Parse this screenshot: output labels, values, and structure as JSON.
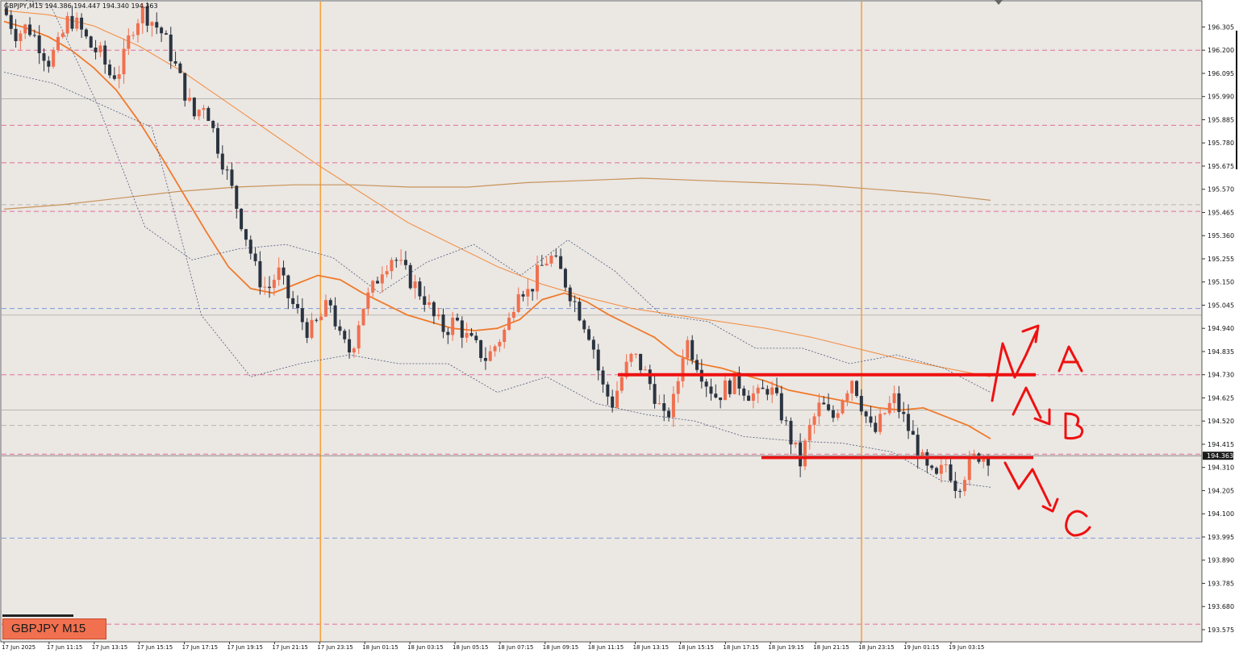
{
  "window": {
    "header": "GBPJPY,M15  194.386 194.447 194.340 194.363",
    "symbol_label": "GBPJPY M15"
  },
  "colors": {
    "background": "#ebe7e3",
    "bull": "#f0704f",
    "bear": "#2a3440",
    "ma_fast": "#f07a2a",
    "ma_mid": "#f28a3a",
    "ma_slow": "#c8935a",
    "bollinger": "#4a5a78",
    "session_line": "#f5a23a",
    "pink_level": "#e0709c",
    "blue_level": "#7f9ad6",
    "annotation": "#ee1111",
    "current_price_tag": "#1b1b1b"
  },
  "chart_data": {
    "type": "candlestick",
    "symbol": "GBPJPY",
    "timeframe": "M15",
    "y_axis": {
      "ylim": [
        193.52,
        196.42
      ],
      "ticks": [
        "196.305",
        "196.200",
        "196.095",
        "195.990",
        "195.885",
        "195.780",
        "195.675",
        "195.570",
        "195.465",
        "195.360",
        "195.255",
        "195.150",
        "195.045",
        "194.940",
        "194.835",
        "194.730",
        "194.625",
        "194.520",
        "194.415",
        "194.310",
        "194.205",
        "194.100",
        "193.995",
        "193.890",
        "193.785",
        "193.680",
        "193.575"
      ]
    },
    "x_axis": {
      "labels": [
        "17 Jun 2025",
        "17 Jun 11:15",
        "17 Jun 13:15",
        "17 Jun 15:15",
        "17 Jun 17:15",
        "17 Jun 19:15",
        "17 Jun 21:15",
        "17 Jun 23:15",
        "18 Jun 01:15",
        "18 Jun 03:15",
        "18 Jun 05:15",
        "18 Jun 07:15",
        "18 Jun 09:15",
        "18 Jun 11:15",
        "18 Jun 13:15",
        "18 Jun 15:15",
        "18 Jun 17:15",
        "18 Jun 19:15",
        "18 Jun 21:15",
        "18 Jun 23:15",
        "19 Jun 01:15",
        "19 Jun 03:15"
      ]
    },
    "current_price": "194.363",
    "close_path": [
      196.36,
      196.27,
      196.31,
      196.24,
      196.15,
      196.22,
      196.35,
      196.3,
      196.22,
      196.18,
      196.08,
      196.12,
      196.3,
      196.38,
      196.33,
      196.27,
      196.15,
      196.02,
      195.9,
      195.97,
      195.8,
      195.66,
      195.5,
      195.35,
      195.18,
      195.11,
      195.2,
      195.08,
      195.0,
      194.92,
      194.98,
      195.06,
      194.88,
      194.83,
      195.03,
      195.11,
      195.22,
      195.27,
      195.2,
      195.14,
      195.08,
      194.98,
      194.93,
      194.98,
      194.9,
      194.85,
      194.8,
      194.88,
      194.95,
      195.14,
      195.1,
      195.2,
      195.27,
      195.2,
      195.1,
      195.0,
      194.9,
      194.68,
      194.6,
      194.73,
      194.82,
      194.75,
      194.65,
      194.52,
      194.62,
      194.9,
      194.8,
      194.7,
      194.63,
      194.68,
      194.7,
      194.65,
      194.63,
      194.68,
      194.58,
      194.45,
      194.33,
      194.5,
      194.6,
      194.52,
      194.63,
      194.72,
      194.58,
      194.45,
      194.55,
      194.62,
      194.52,
      194.42,
      194.3,
      194.25,
      194.33,
      194.22,
      194.31,
      194.37,
      194.363
    ],
    "series": [
      {
        "name": "",
        "kind": "ma_fast",
        "values": [
          196.33,
          196.3,
          196.26,
          196.2,
          196.12,
          196.02,
          195.88,
          195.72,
          195.55,
          195.38,
          195.22,
          195.12,
          195.1,
          195.14,
          195.18,
          195.16,
          195.1,
          195.05,
          195.0,
          194.97,
          194.94,
          194.93,
          194.94,
          194.98,
          195.07,
          195.1,
          195.06,
          195.0,
          194.95,
          194.9,
          194.82,
          194.78,
          194.76,
          194.73,
          194.7,
          194.66,
          194.64,
          194.62,
          194.6,
          194.58,
          194.57,
          194.58,
          194.54,
          194.5,
          194.44
        ]
      },
      {
        "name": "",
        "kind": "ma_mid",
        "values": [
          196.38,
          196.36,
          196.31,
          196.22,
          196.1,
          195.96,
          195.82,
          195.68,
          195.55,
          195.42,
          195.32,
          195.22,
          195.14,
          195.08,
          195.03,
          195.0,
          194.97,
          194.94,
          194.9,
          194.85,
          194.8,
          194.76,
          194.72
        ]
      },
      {
        "name": "",
        "kind": "ma_slow",
        "values": [
          195.48,
          195.5,
          195.53,
          195.56,
          195.58,
          195.59,
          195.59,
          195.58,
          195.58,
          195.6,
          195.61,
          195.62,
          195.61,
          195.6,
          195.59,
          195.57,
          195.55,
          195.52
        ]
      },
      {
        "name": "",
        "kind": "bollinger_upper",
        "values": [
          196.45,
          196.4,
          195.95,
          195.4,
          195.25,
          195.3,
          195.32,
          195.26,
          195.1,
          195.24,
          195.32,
          195.18,
          195.34,
          195.2,
          195.0,
          194.97,
          194.85,
          194.85,
          194.78,
          194.82,
          194.76,
          194.65
        ]
      },
      {
        "name": "",
        "kind": "bollinger_lower",
        "values": [
          196.1,
          196.05,
          195.95,
          195.85,
          195.0,
          194.72,
          194.78,
          194.82,
          194.78,
          194.78,
          194.65,
          194.72,
          194.6,
          194.55,
          194.52,
          194.45,
          194.43,
          194.42,
          194.38,
          194.25,
          194.22
        ]
      }
    ],
    "horizontal_levels": [
      {
        "kind": "pink",
        "price": 196.2
      },
      {
        "kind": "gray",
        "price": 195.98
      },
      {
        "kind": "pink",
        "price": 195.86
      },
      {
        "kind": "pink",
        "price": 195.69
      },
      {
        "kind": "gray",
        "price": 195.5
      },
      {
        "kind": "pink",
        "price": 195.47
      },
      {
        "kind": "blue",
        "price": 195.03
      },
      {
        "kind": "gray",
        "price": 195.0
      },
      {
        "kind": "pink",
        "price": 194.73
      },
      {
        "kind": "gray",
        "price": 194.57
      },
      {
        "kind": "gray",
        "price": 194.5
      },
      {
        "kind": "pink",
        "price": 194.37
      },
      {
        "kind": "blue",
        "price": 193.99
      },
      {
        "kind": "pink",
        "price": 193.6
      }
    ],
    "session_lines": [
      "17 Jun 23:15",
      "18 Jun 23:15"
    ],
    "annotations": {
      "resistance_price": 194.73,
      "support_price": 194.355,
      "labels": [
        "A",
        "B",
        "C"
      ]
    }
  }
}
